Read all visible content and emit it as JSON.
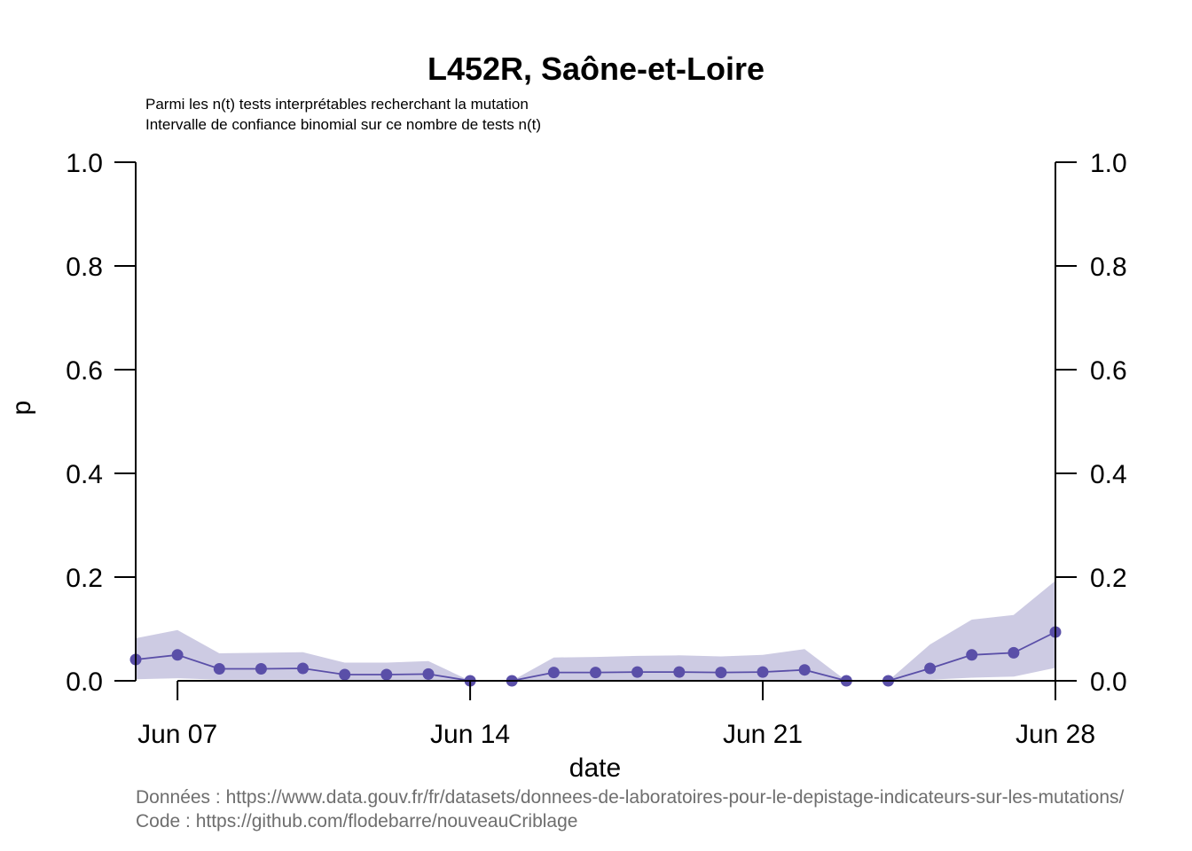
{
  "chart_data": {
    "type": "line",
    "title": "L452R, Saône-et-Loire",
    "subtitle_lines": [
      "Parmi les n(t) tests interprétables recherchant la mutation",
      "Intervalle de confiance binomial sur ce nombre de tests n(t)"
    ],
    "xlabel": "date",
    "ylabel": "p",
    "xlim": [
      "2021-06-06",
      "2021-06-28"
    ],
    "ylim": [
      0,
      1
    ],
    "x_ticks": [
      {
        "date": "2021-06-07",
        "label": "Jun 07"
      },
      {
        "date": "2021-06-14",
        "label": "Jun 14"
      },
      {
        "date": "2021-06-21",
        "label": "Jun 21"
      },
      {
        "date": "2021-06-28",
        "label": "Jun 28"
      }
    ],
    "y_ticks": [
      "0.0",
      "0.2",
      "0.4",
      "0.6",
      "0.8",
      "1.0"
    ],
    "series": [
      {
        "x": [
          "2021-06-06",
          "2021-06-07",
          "2021-06-08",
          "2021-06-09",
          "2021-06-10",
          "2021-06-11",
          "2021-06-12",
          "2021-06-13",
          "2021-06-14",
          "2021-06-15",
          "2021-06-16",
          "2021-06-17",
          "2021-06-18",
          "2021-06-19",
          "2021-06-20",
          "2021-06-21",
          "2021-06-22",
          "2021-06-23",
          "2021-06-24",
          "2021-06-25",
          "2021-06-26",
          "2021-06-27",
          "2021-06-28"
        ],
        "values": [
          0.041,
          0.05,
          0.023,
          0.023,
          0.024,
          0.012,
          0.012,
          0.013,
          0.0,
          0.0,
          0.016,
          0.016,
          0.017,
          0.017,
          0.016,
          0.017,
          0.021,
          0.0,
          0.0,
          0.024,
          0.05,
          0.054,
          0.094
        ],
        "ci_low": [
          0.003,
          0.005,
          0.002,
          0.002,
          0.002,
          0.001,
          0.001,
          0.001,
          0.0,
          0.0,
          0.001,
          0.001,
          0.001,
          0.001,
          0.001,
          0.001,
          0.002,
          0.0,
          0.0,
          0.002,
          0.006,
          0.008,
          0.025
        ],
        "ci_high": [
          0.082,
          0.098,
          0.053,
          0.054,
          0.055,
          0.035,
          0.035,
          0.038,
          0.0,
          0.0,
          0.045,
          0.046,
          0.048,
          0.049,
          0.047,
          0.05,
          0.061,
          0.0,
          0.0,
          0.07,
          0.118,
          0.127,
          0.193
        ]
      }
    ],
    "colors": {
      "line": "#5a4fa8",
      "point": "#5a4fa8",
      "ci_band": "#cdcbe3"
    },
    "caption_lines": [
      "Données : https://www.data.gouv.fr/fr/datasets/donnees-de-laboratoires-pour-le-depistage-indicateurs-sur-les-mutations/",
      "Code : https://github.com/flodebarre/nouveauCriblage"
    ]
  }
}
